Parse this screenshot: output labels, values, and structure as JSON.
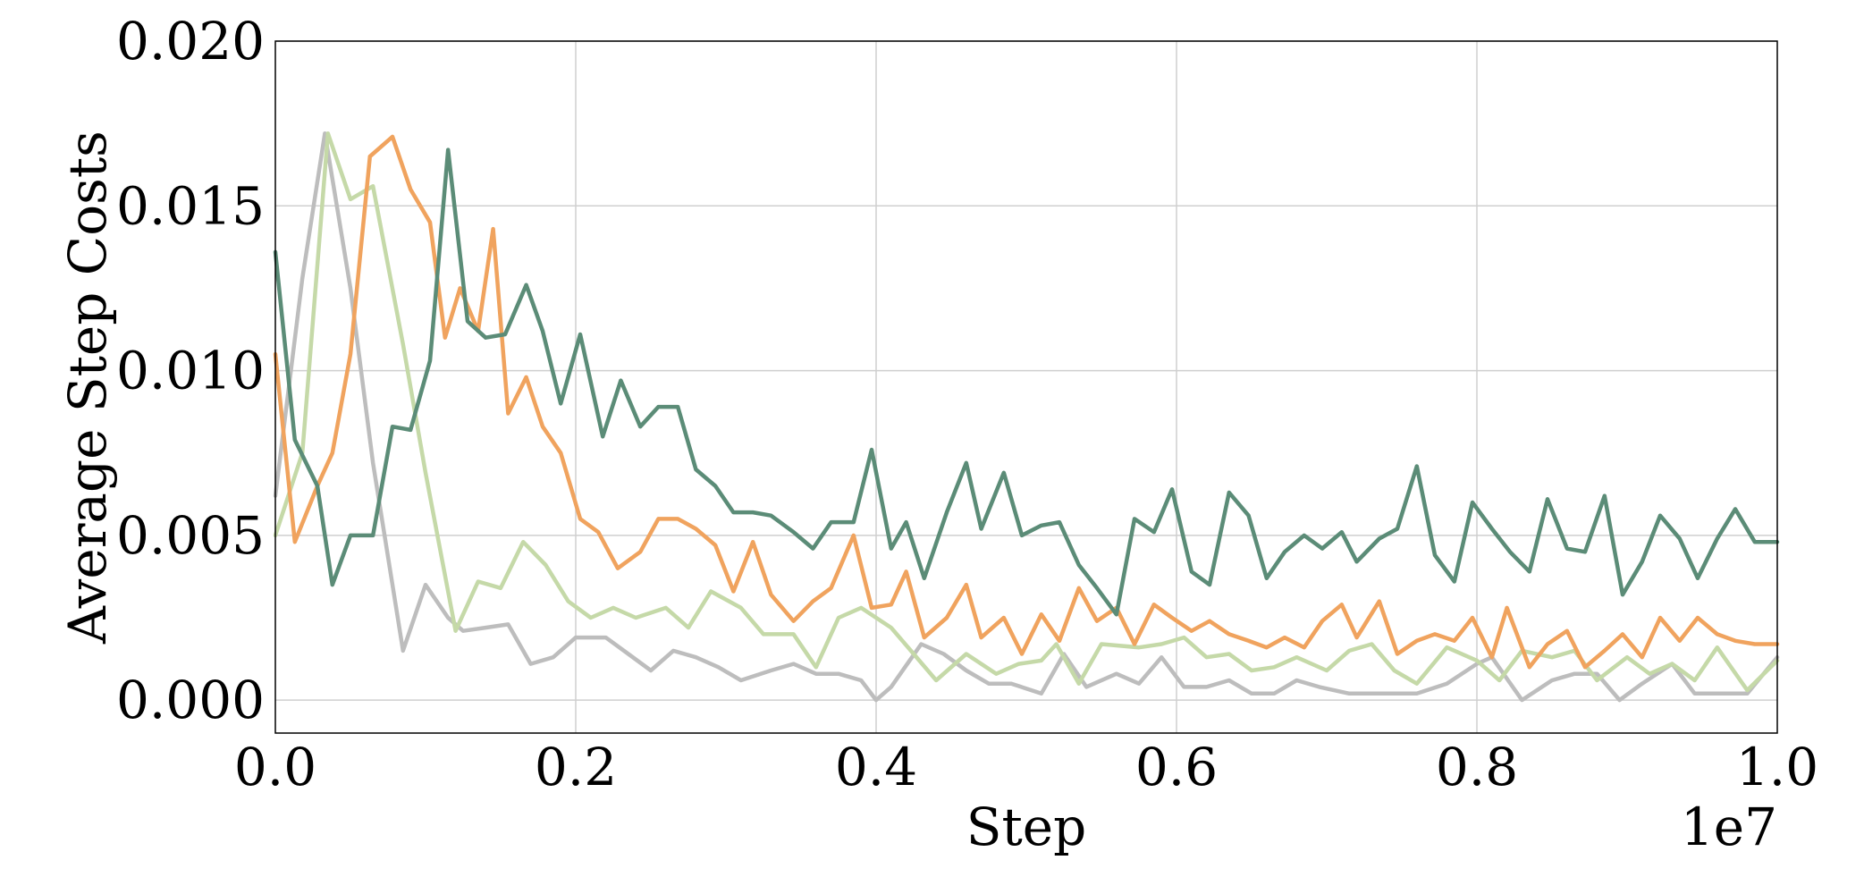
{
  "chart_data": {
    "type": "line",
    "title": "",
    "xlabel": "Step",
    "ylabel": "Average Step Costs",
    "x_offset_label": "1e7",
    "xlim": [
      0.0,
      1.0
    ],
    "ylim": [
      -0.001,
      0.02
    ],
    "xticks": [
      0.0,
      0.2,
      0.4,
      0.6,
      0.8,
      1.0
    ],
    "xtick_labels": [
      "0.0",
      "0.2",
      "0.4",
      "0.6",
      "0.8",
      "1.0"
    ],
    "yticks": [
      0.0,
      0.005,
      0.01,
      0.015,
      0.02
    ],
    "ytick_labels": [
      "0.000",
      "0.005",
      "0.010",
      "0.015",
      "0.020"
    ],
    "grid": true,
    "series": [
      {
        "color": "#bdbdbd",
        "x": [
          0.0,
          0.018,
          0.033,
          0.05,
          0.065,
          0.085,
          0.1,
          0.115,
          0.125,
          0.14,
          0.155,
          0.17,
          0.185,
          0.2,
          0.22,
          0.235,
          0.25,
          0.265,
          0.28,
          0.295,
          0.31,
          0.33,
          0.345,
          0.36,
          0.375,
          0.39,
          0.4,
          0.41,
          0.43,
          0.445,
          0.46,
          0.475,
          0.49,
          0.51,
          0.525,
          0.54,
          0.56,
          0.575,
          0.59,
          0.605,
          0.62,
          0.635,
          0.65,
          0.665,
          0.68,
          0.695,
          0.715,
          0.73,
          0.745,
          0.76,
          0.78,
          0.8,
          0.81,
          0.83,
          0.85,
          0.865,
          0.88,
          0.895,
          0.91,
          0.93,
          0.945,
          0.96,
          0.98,
          1.0
        ],
        "values": [
          0.0062,
          0.0128,
          0.0172,
          0.0125,
          0.0072,
          0.0015,
          0.0035,
          0.0025,
          0.0021,
          0.0022,
          0.0023,
          0.0011,
          0.0013,
          0.0019,
          0.0019,
          0.0014,
          0.0009,
          0.0015,
          0.0013,
          0.001,
          0.0006,
          0.0009,
          0.0011,
          0.0008,
          0.0008,
          0.0006,
          0.0,
          0.0004,
          0.0017,
          0.0014,
          0.0009,
          0.0005,
          0.0005,
          0.0002,
          0.0014,
          0.0004,
          0.0008,
          0.0005,
          0.0013,
          0.0004,
          0.0004,
          0.0006,
          0.0002,
          0.0002,
          0.0006,
          0.0004,
          0.0002,
          0.0002,
          0.0002,
          0.0002,
          0.0005,
          0.0011,
          0.0013,
          0.0,
          0.0006,
          0.0008,
          0.0008,
          0.0,
          0.0005,
          0.0011,
          0.0002,
          0.0002,
          0.0002,
          0.0013
        ]
      },
      {
        "color": "#c5d9a8",
        "x": [
          0.0,
          0.018,
          0.035,
          0.05,
          0.065,
          0.085,
          0.1,
          0.12,
          0.135,
          0.15,
          0.165,
          0.18,
          0.195,
          0.21,
          0.225,
          0.24,
          0.26,
          0.275,
          0.29,
          0.31,
          0.325,
          0.345,
          0.36,
          0.375,
          0.39,
          0.41,
          0.425,
          0.44,
          0.46,
          0.48,
          0.495,
          0.51,
          0.52,
          0.535,
          0.55,
          0.575,
          0.59,
          0.605,
          0.62,
          0.635,
          0.65,
          0.665,
          0.68,
          0.7,
          0.715,
          0.73,
          0.745,
          0.76,
          0.78,
          0.8,
          0.815,
          0.83,
          0.85,
          0.865,
          0.88,
          0.9,
          0.915,
          0.93,
          0.945,
          0.96,
          0.98,
          1.0
        ],
        "values": [
          0.005,
          0.0075,
          0.0172,
          0.0152,
          0.0156,
          0.0108,
          0.0069,
          0.0021,
          0.0036,
          0.0034,
          0.0048,
          0.0041,
          0.003,
          0.0025,
          0.0028,
          0.0025,
          0.0028,
          0.0022,
          0.0033,
          0.0028,
          0.002,
          0.002,
          0.001,
          0.0025,
          0.0028,
          0.0022,
          0.0014,
          0.0006,
          0.0014,
          0.0008,
          0.0011,
          0.0012,
          0.0017,
          0.0005,
          0.0017,
          0.0016,
          0.0017,
          0.0019,
          0.0013,
          0.0014,
          0.0009,
          0.001,
          0.0013,
          0.0009,
          0.0015,
          0.0017,
          0.0009,
          0.0005,
          0.0016,
          0.0012,
          0.0006,
          0.0015,
          0.0013,
          0.0015,
          0.0006,
          0.0013,
          0.0008,
          0.0011,
          0.0006,
          0.0016,
          0.0003,
          0.0012
        ]
      },
      {
        "color": "#f0a35e",
        "x": [
          0.0,
          0.013,
          0.028,
          0.038,
          0.05,
          0.063,
          0.078,
          0.09,
          0.103,
          0.113,
          0.123,
          0.135,
          0.145,
          0.155,
          0.167,
          0.178,
          0.19,
          0.203,
          0.215,
          0.228,
          0.243,
          0.255,
          0.268,
          0.28,
          0.293,
          0.305,
          0.318,
          0.33,
          0.345,
          0.358,
          0.37,
          0.385,
          0.397,
          0.41,
          0.42,
          0.432,
          0.447,
          0.46,
          0.47,
          0.485,
          0.497,
          0.51,
          0.522,
          0.535,
          0.547,
          0.56,
          0.572,
          0.585,
          0.597,
          0.61,
          0.622,
          0.635,
          0.648,
          0.66,
          0.672,
          0.685,
          0.697,
          0.71,
          0.72,
          0.735,
          0.747,
          0.76,
          0.772,
          0.785,
          0.797,
          0.81,
          0.82,
          0.835,
          0.847,
          0.86,
          0.872,
          0.885,
          0.897,
          0.91,
          0.922,
          0.935,
          0.947,
          0.96,
          0.972,
          0.985,
          1.0
        ],
        "values": [
          0.0105,
          0.0048,
          0.0065,
          0.0075,
          0.0105,
          0.0165,
          0.0171,
          0.0155,
          0.0145,
          0.011,
          0.0125,
          0.0112,
          0.0143,
          0.0087,
          0.0098,
          0.0083,
          0.0075,
          0.0055,
          0.0051,
          0.004,
          0.0045,
          0.0055,
          0.0055,
          0.0052,
          0.0047,
          0.0033,
          0.0048,
          0.0032,
          0.0024,
          0.003,
          0.0034,
          0.005,
          0.0028,
          0.0029,
          0.0039,
          0.0019,
          0.0025,
          0.0035,
          0.0019,
          0.0025,
          0.0014,
          0.0026,
          0.0018,
          0.0034,
          0.0024,
          0.0028,
          0.0017,
          0.0029,
          0.0025,
          0.0021,
          0.0024,
          0.002,
          0.0018,
          0.0016,
          0.0019,
          0.0016,
          0.0024,
          0.0029,
          0.0019,
          0.003,
          0.0014,
          0.0018,
          0.002,
          0.0018,
          0.0025,
          0.0013,
          0.0028,
          0.001,
          0.0017,
          0.0021,
          0.001,
          0.0015,
          0.002,
          0.0013,
          0.0025,
          0.0018,
          0.0025,
          0.002,
          0.0018,
          0.0017,
          0.0017
        ]
      },
      {
        "color": "#5b8c77",
        "x": [
          0.0,
          0.013,
          0.028,
          0.038,
          0.05,
          0.065,
          0.078,
          0.09,
          0.103,
          0.115,
          0.128,
          0.14,
          0.153,
          0.167,
          0.178,
          0.19,
          0.203,
          0.218,
          0.23,
          0.243,
          0.255,
          0.268,
          0.28,
          0.293,
          0.305,
          0.318,
          0.33,
          0.345,
          0.358,
          0.37,
          0.385,
          0.397,
          0.41,
          0.42,
          0.432,
          0.447,
          0.46,
          0.47,
          0.485,
          0.497,
          0.51,
          0.522,
          0.535,
          0.547,
          0.56,
          0.572,
          0.585,
          0.597,
          0.61,
          0.622,
          0.635,
          0.648,
          0.66,
          0.672,
          0.685,
          0.697,
          0.71,
          0.72,
          0.735,
          0.747,
          0.76,
          0.772,
          0.785,
          0.797,
          0.81,
          0.822,
          0.835,
          0.847,
          0.86,
          0.872,
          0.885,
          0.897,
          0.91,
          0.922,
          0.935,
          0.947,
          0.96,
          0.972,
          0.985,
          1.0
        ],
        "values": [
          0.0136,
          0.0079,
          0.0065,
          0.0035,
          0.005,
          0.005,
          0.0083,
          0.0082,
          0.0103,
          0.0167,
          0.0115,
          0.011,
          0.0111,
          0.0126,
          0.0112,
          0.009,
          0.0111,
          0.008,
          0.0097,
          0.0083,
          0.0089,
          0.0089,
          0.007,
          0.0065,
          0.0057,
          0.0057,
          0.0056,
          0.0051,
          0.0046,
          0.0054,
          0.0054,
          0.0076,
          0.0046,
          0.0054,
          0.0037,
          0.0057,
          0.0072,
          0.0052,
          0.0069,
          0.005,
          0.0053,
          0.0054,
          0.0041,
          0.0034,
          0.0026,
          0.0055,
          0.0051,
          0.0064,
          0.0039,
          0.0035,
          0.0063,
          0.0056,
          0.0037,
          0.0045,
          0.005,
          0.0046,
          0.0051,
          0.0042,
          0.0049,
          0.0052,
          0.0071,
          0.0044,
          0.0036,
          0.006,
          0.0052,
          0.0045,
          0.0039,
          0.0061,
          0.0046,
          0.0045,
          0.0062,
          0.0032,
          0.0042,
          0.0056,
          0.0049,
          0.0037,
          0.0049,
          0.0058,
          0.0048,
          0.0048
        ]
      }
    ]
  }
}
